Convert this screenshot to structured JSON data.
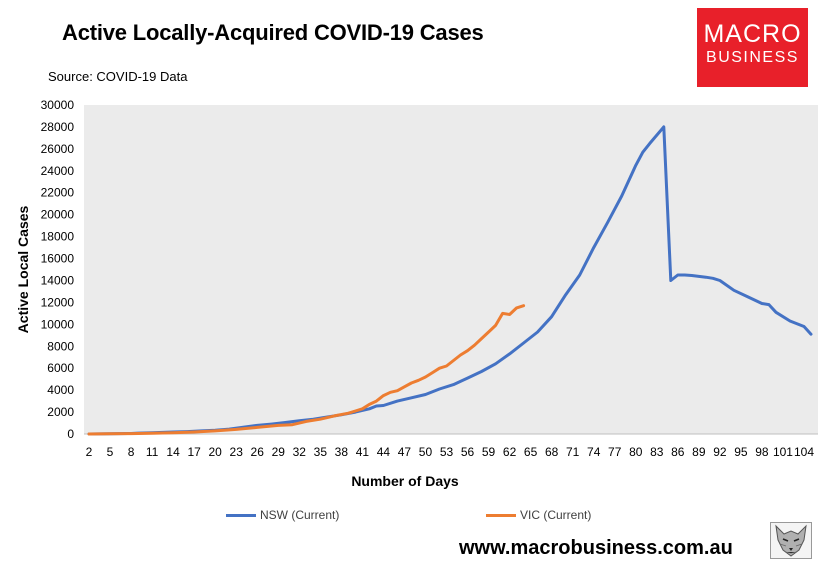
{
  "page": {
    "title": "Active Locally-Acquired COVID-19 Cases",
    "source": "Source: COVID-19 Data",
    "website": "www.macrobusiness.com.au",
    "logo": {
      "line1": "MACRO",
      "line2": "BUSINESS",
      "color": "#e8202a"
    }
  },
  "chart_data": {
    "type": "line",
    "xlabel": "Number of Days",
    "ylabel": "Active Local Cases",
    "xlim": [
      2,
      105
    ],
    "ylim": [
      0,
      30000
    ],
    "yticks": [
      0,
      2000,
      4000,
      6000,
      8000,
      10000,
      12000,
      14000,
      16000,
      18000,
      20000,
      22000,
      24000,
      26000,
      28000,
      30000
    ],
    "xticks": [
      2,
      5,
      8,
      11,
      14,
      17,
      20,
      23,
      26,
      29,
      32,
      35,
      38,
      41,
      44,
      47,
      50,
      53,
      56,
      59,
      62,
      65,
      68,
      71,
      74,
      77,
      80,
      83,
      86,
      89,
      92,
      95,
      98,
      101,
      104
    ],
    "xticklabels": [
      "2",
      "5",
      "8",
      "11",
      "14",
      "17",
      "20",
      "23",
      "26",
      "29",
      "32",
      "35",
      "38",
      "41",
      "44",
      "47",
      "50",
      "53",
      "56",
      "59",
      "62",
      "65",
      "68",
      "71",
      "74",
      "77",
      "80",
      "83",
      "86",
      "89",
      "92",
      "95",
      "98",
      "101",
      "104"
    ],
    "grid": false,
    "plot_background": "#ebebeb",
    "legend_position": "bottom",
    "series": [
      {
        "name": "NSW (Current)",
        "color": "#4472c4",
        "x": [
          2,
          5,
          8,
          9,
          11,
          14,
          16,
          18,
          20,
          22,
          24,
          26,
          28,
          30,
          32,
          34,
          36,
          38,
          40,
          42,
          43,
          44,
          46,
          48,
          50,
          52,
          54,
          56,
          58,
          60,
          62,
          64,
          66,
          68,
          70,
          72,
          74,
          76,
          78,
          80,
          81,
          82,
          84,
          85,
          86,
          87,
          88,
          90,
          91,
          92,
          94,
          96,
          98,
          99,
          100,
          102,
          104,
          105
        ],
        "y": [
          0,
          30,
          50,
          80,
          120,
          180,
          220,
          280,
          340,
          450,
          620,
          780,
          900,
          1050,
          1200,
          1350,
          1550,
          1750,
          2000,
          2300,
          2550,
          2600,
          3000,
          3300,
          3600,
          4100,
          4500,
          5100,
          5700,
          6400,
          7300,
          8300,
          9300,
          10700,
          12700,
          14500,
          17000,
          19300,
          21700,
          24500,
          25700,
          26500,
          28000,
          14000,
          14500,
          14500,
          14450,
          14300,
          14200,
          14000,
          13100,
          12500,
          11900,
          11800,
          11100,
          10300,
          9800,
          9100
        ]
      },
      {
        "name": "VIC (Current)",
        "color": "#ed7d31",
        "x": [
          2,
          5,
          8,
          11,
          14,
          17,
          20,
          23,
          26,
          29,
          31,
          33,
          35,
          37,
          39,
          40,
          41,
          42,
          43,
          44,
          45,
          46,
          47,
          48,
          49,
          50,
          51,
          52,
          53,
          54,
          55,
          56,
          57,
          58,
          59,
          60,
          61,
          62,
          63,
          64
        ],
        "y": [
          0,
          20,
          40,
          70,
          110,
          180,
          280,
          420,
          600,
          780,
          850,
          1150,
          1350,
          1650,
          1900,
          2100,
          2300,
          2700,
          3000,
          3500,
          3800,
          3950,
          4300,
          4650,
          4900,
          5200,
          5600,
          6000,
          6200,
          6700,
          7200,
          7600,
          8100,
          8700,
          9300,
          9900,
          11000,
          10900,
          11500,
          11700
        ]
      }
    ]
  }
}
